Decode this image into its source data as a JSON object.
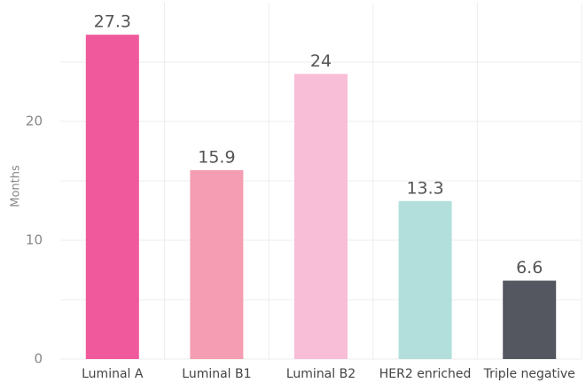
{
  "chart_data": {
    "type": "bar",
    "y_label": "Months",
    "categories": [
      "Luminal A",
      "Luminal B1",
      "Luminal B2",
      "HER2 enriched",
      "Triple negative"
    ],
    "values": [
      27.3,
      15.9,
      24,
      13.3,
      6.6
    ],
    "colors": [
      "#f0599b",
      "#f59db2",
      "#f8bdd7",
      "#b2dfdb",
      "#545660"
    ],
    "ylim": [
      0,
      30
    ],
    "yticks": [
      0,
      10,
      20
    ],
    "minor_yticks": [
      5,
      15,
      25
    ],
    "grid": true,
    "data_labels": true
  }
}
